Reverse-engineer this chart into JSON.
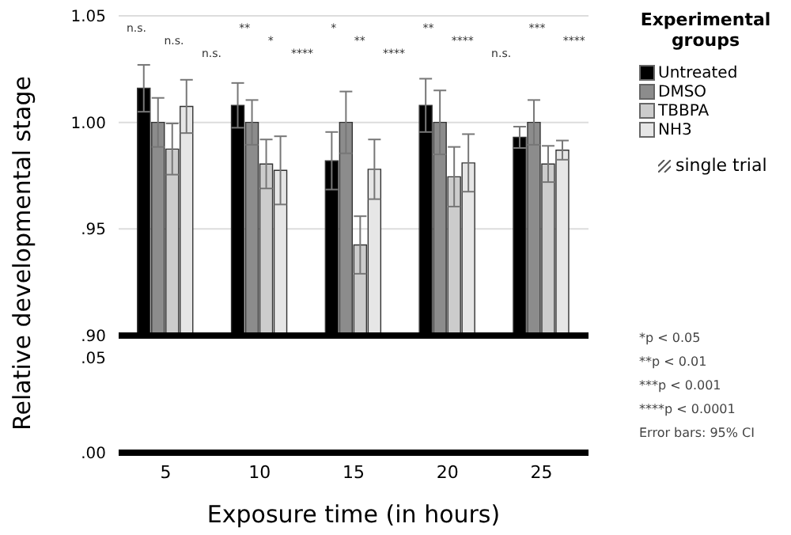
{
  "chart_data": [
    {
      "type": "bar",
      "ylabel": "Relative developmental stage",
      "legend_title": "Experimental groups",
      "legend": "right",
      "grid": "y",
      "tick_labels": "y",
      "categories": [
        "5",
        "10",
        "15",
        "20",
        "25"
      ],
      "ylim": [
        0.9,
        1.05
      ],
      "yticks": [
        {
          "value": 0.9,
          "label": ".90"
        },
        {
          "value": 0.95,
          "label": ".95"
        },
        {
          "value": 1,
          "label": "1.00"
        },
        1.05
      ],
      "series": [
        {
          "name": "Untreated",
          "color": "#000000",
          "values": [
            1.016,
            1.008,
            0.982,
            1.008,
            0.993
          ],
          "errors": [
            0.011,
            0.0105,
            0.0135,
            0.0125,
            0.005
          ]
        },
        {
          "name": "DMSO",
          "color": "#8c8c8c",
          "values": [
            1.0,
            1.0,
            1.0,
            1.0,
            1.0
          ],
          "errors": [
            0.0115,
            0.0105,
            0.0145,
            0.015,
            0.0105
          ]
        },
        {
          "name": "TBBPA",
          "color": "#cccccc",
          "values": [
            0.9875,
            0.9805,
            0.9425,
            0.9745,
            0.9805
          ],
          "errors": [
            0.012,
            0.0115,
            0.0135,
            0.014,
            0.0085
          ]
        },
        {
          "name": "NH3",
          "color": "#e6e6e6",
          "values": [
            1.0075,
            0.9775,
            0.978,
            0.981,
            0.987
          ],
          "errors": [
            0.0125,
            0.016,
            0.014,
            0.0135,
            0.0045
          ]
        }
      ],
      "annotations": [
        "n.s.",
        "n.s.",
        "n.s.",
        "**",
        "*",
        "****",
        "*",
        "**",
        "****",
        "**",
        "****",
        "n.s.",
        "***",
        "****",
        "single trial",
        "*p < 0.05",
        "**p < 0.01",
        "***p < 0.001",
        "****p < 0.0001",
        "Error bars: 95% CI"
      ]
    },
    {
      "type": "bar",
      "xlabel": "Exposure time (in hours)",
      "categories": [
        "5",
        "10",
        "15",
        "20",
        "25"
      ],
      "ylim": [
        0,
        0.05
      ],
      "yticks": [
        {
          "value": 0,
          "label": ".00"
        },
        {
          "value": 0.05,
          "label": ".05"
        }
      ],
      "series": [
        {
          "color": "#000000",
          "values": [
            null,
            null,
            null,
            null,
            null
          ]
        },
        {
          "color": "#8c8c8c",
          "values": [
            null,
            null,
            null,
            null,
            null
          ]
        },
        {
          "color": "#cccccc",
          "values": [
            null,
            null,
            null,
            null,
            null
          ]
        },
        {
          "color": "#e6e6e6",
          "values": [
            null,
            null,
            null,
            null,
            null
          ]
        }
      ]
    }
  ]
}
